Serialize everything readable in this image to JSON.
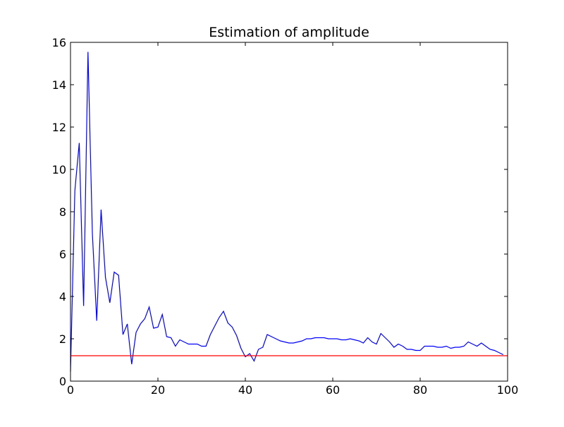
{
  "chart_data": {
    "type": "line",
    "title": "Estimation of amplitude",
    "xlabel": "",
    "ylabel": "",
    "xlim": [
      0,
      100
    ],
    "ylim": [
      0,
      16
    ],
    "x_ticks": [
      0,
      20,
      40,
      60,
      80,
      100
    ],
    "y_ticks": [
      0,
      2,
      4,
      6,
      8,
      10,
      12,
      14,
      16
    ],
    "grid": false,
    "series": [
      {
        "color": "#0000ff",
        "x": [
          0,
          1,
          2,
          3,
          4,
          5,
          6,
          7,
          8,
          9,
          10,
          11,
          12,
          13,
          14,
          15,
          16,
          17,
          18,
          19,
          20,
          21,
          22,
          23,
          24,
          25,
          26,
          27,
          28,
          29,
          30,
          31,
          32,
          33,
          34,
          35,
          36,
          37,
          38,
          39,
          40,
          41,
          42,
          43,
          44,
          45,
          46,
          47,
          48,
          49,
          50,
          51,
          52,
          53,
          54,
          55,
          56,
          57,
          58,
          59,
          60,
          61,
          62,
          63,
          64,
          65,
          66,
          67,
          68,
          69,
          70,
          71,
          72,
          73,
          74,
          75,
          76,
          77,
          78,
          79,
          80,
          81,
          82,
          83,
          84,
          85,
          86,
          87,
          88,
          89,
          90,
          91,
          92,
          93,
          94,
          95,
          96,
          97,
          98,
          99
        ],
        "values": [
          0.45,
          9.0,
          11.25,
          3.55,
          15.55,
          7.0,
          2.85,
          8.1,
          4.9,
          3.7,
          5.15,
          5.0,
          2.2,
          2.7,
          0.8,
          2.3,
          2.7,
          2.95,
          3.5,
          2.5,
          2.55,
          3.15,
          2.1,
          2.05,
          1.65,
          1.95,
          1.85,
          1.75,
          1.75,
          1.75,
          1.65,
          1.65,
          2.2,
          2.6,
          3.0,
          3.3,
          2.75,
          2.55,
          2.15,
          1.55,
          1.15,
          1.3,
          0.95,
          1.5,
          1.6,
          2.2,
          2.1,
          2.0,
          1.9,
          1.85,
          1.8,
          1.8,
          1.85,
          1.9,
          2.0,
          2.0,
          2.05,
          2.05,
          2.05,
          2.0,
          2.0,
          2.0,
          1.95,
          1.95,
          2.0,
          1.95,
          1.9,
          1.8,
          2.05,
          1.85,
          1.75,
          2.25,
          2.05,
          1.85,
          1.6,
          1.75,
          1.65,
          1.5,
          1.5,
          1.45,
          1.45,
          1.65,
          1.65,
          1.65,
          1.6,
          1.6,
          1.65,
          1.55,
          1.6,
          1.6,
          1.65,
          1.85,
          1.75,
          1.65,
          1.8,
          1.65,
          1.5,
          1.45,
          1.35,
          1.25
        ]
      },
      {
        "color": "#ff0000",
        "x": [
          0,
          100
        ],
        "values": [
          1.2,
          1.2
        ]
      }
    ]
  }
}
